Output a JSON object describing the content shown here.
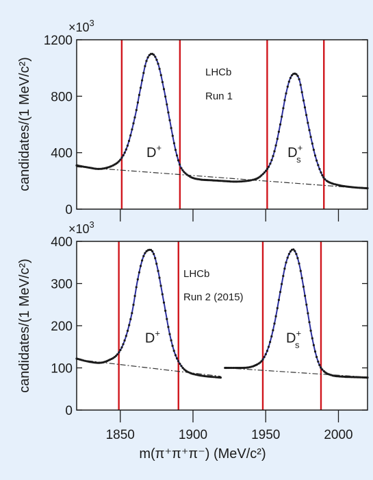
{
  "chart_data": [
    {
      "type": "line",
      "panel": "top",
      "multiplier": "×10³",
      "multiplier_base": "×10",
      "multiplier_exp": "3",
      "ylabel": "candidates/(1 MeV/c²)",
      "ylim": [
        0,
        1200
      ],
      "yticks": [
        0,
        400,
        800,
        1200
      ],
      "xlim": [
        1820,
        2020
      ],
      "xticks": [
        1850,
        1900,
        1950,
        2000
      ],
      "annotation": [
        "LHCb",
        "Run 1"
      ],
      "peak_labels": [
        {
          "text": "D",
          "sup": "+",
          "sub": "",
          "x": 1868,
          "y": 370
        },
        {
          "text": "D",
          "sup": "+",
          "sub": "s",
          "x": 1965,
          "y": 370
        }
      ],
      "signal_windows": [
        1851,
        1891,
        1951,
        1990
      ],
      "series": [
        {
          "role": "data",
          "x": [
            1820,
            1828,
            1836,
            1844,
            1850,
            1855,
            1860,
            1864,
            1868,
            1872,
            1876,
            1880,
            1884,
            1888,
            1892,
            1898,
            1905,
            1912,
            1920,
            1930,
            1940,
            1946,
            1952,
            1956,
            1960,
            1964,
            1967,
            1970,
            1973,
            1976,
            1980,
            1984,
            1988,
            1992,
            2000,
            2010,
            2020
          ],
          "values": [
            310,
            295,
            285,
            305,
            350,
            450,
            650,
            860,
            1050,
            1100,
            1030,
            850,
            630,
            420,
            290,
            230,
            210,
            205,
            200,
            195,
            205,
            230,
            300,
            410,
            600,
            820,
            930,
            960,
            920,
            770,
            560,
            380,
            260,
            200,
            170,
            155,
            148
          ]
        },
        {
          "role": "background",
          "x": [
            1820,
            2020
          ],
          "values": [
            300,
            145
          ]
        }
      ]
    },
    {
      "type": "line",
      "panel": "bottom",
      "multiplier": "×10³",
      "multiplier_base": "×10",
      "multiplier_exp": "3",
      "ylabel": "candidates/(1 MeV/c²)",
      "xlabel": "m(π⁺π⁺π⁻) (MeV/c²)",
      "ylim": [
        0,
        400
      ],
      "yticks": [
        0,
        100,
        200,
        300,
        400
      ],
      "xlim": [
        1820,
        2020
      ],
      "xticks": [
        1850,
        1900,
        1950,
        2000
      ],
      "annotation": [
        "LHCb",
        "Run 2 (2015)"
      ],
      "peak_labels": [
        {
          "text": "D",
          "sup": "+",
          "sub": "",
          "x": 1867,
          "y": 160
        },
        {
          "text": "D",
          "sup": "+",
          "sub": "s",
          "x": 1964,
          "y": 160
        }
      ],
      "signal_windows": [
        1849,
        1890,
        1948,
        1988
      ],
      "series": [
        {
          "role": "data",
          "x": [
            1820,
            1828,
            1836,
            1842,
            1848,
            1853,
            1858,
            1862,
            1866,
            1870,
            1873,
            1876,
            1880,
            1884,
            1888,
            1893,
            1898,
            1905,
            1912,
            1919
          ],
          "values": [
            122,
            115,
            112,
            118,
            132,
            165,
            230,
            310,
            365,
            380,
            370,
            330,
            255,
            180,
            130,
            100,
            88,
            82,
            79,
            77
          ]
        },
        {
          "role": "data",
          "x": [
            1922,
            1930,
            1938,
            1944,
            1948,
            1952,
            1956,
            1960,
            1964,
            1968,
            1971,
            1974,
            1978,
            1982,
            1986,
            1990,
            1996,
            2004,
            2012,
            2020
          ],
          "values": [
            100,
            100,
            101,
            108,
            120,
            150,
            205,
            280,
            350,
            380,
            370,
            330,
            250,
            170,
            115,
            92,
            82,
            79,
            78,
            77
          ]
        },
        {
          "role": "background",
          "x": [
            1820,
            1919
          ],
          "values": [
            120,
            80
          ]
        },
        {
          "role": "background",
          "x": [
            1922,
            2020
          ],
          "values": [
            100,
            78
          ]
        }
      ]
    }
  ]
}
